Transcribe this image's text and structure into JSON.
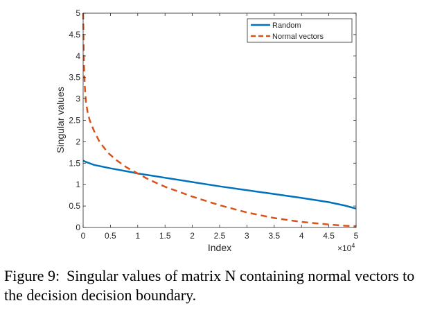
{
  "caption": {
    "prefix": "Figure 9:",
    "text": "Singular values of matrix N containing normal vectors to the decision decision boundary."
  },
  "chart_data": {
    "type": "line",
    "title": "",
    "xlabel": "Index",
    "ylabel": "Singular values",
    "x_multiplier_label": "×10",
    "x_multiplier_exponent": "4",
    "xlim": [
      0,
      5
    ],
    "ylim": [
      0,
      5
    ],
    "xticks": [
      "0",
      "0.5",
      "1",
      "1.5",
      "2",
      "2.5",
      "3",
      "3.5",
      "4",
      "4.5",
      "5"
    ],
    "yticks": [
      "0",
      "0.5",
      "1",
      "1.5",
      "2",
      "2.5",
      "3",
      "3.5",
      "4",
      "4.5",
      "5"
    ],
    "grid": false,
    "legend_position": "top-right",
    "series": [
      {
        "name": "Random",
        "color": "#0072BD",
        "style": "solid",
        "x": [
          0,
          0.05,
          0.2,
          0.5,
          0.8,
          1.0,
          1.5,
          2.0,
          2.5,
          3.0,
          3.5,
          4.0,
          4.5,
          4.8,
          5.0
        ],
        "y": [
          1.56,
          1.53,
          1.46,
          1.38,
          1.31,
          1.26,
          1.16,
          1.06,
          0.96,
          0.87,
          0.78,
          0.69,
          0.59,
          0.51,
          0.44
        ]
      },
      {
        "name": "Normal vectors",
        "color": "#D95319",
        "style": "dashed",
        "x": [
          0,
          0.005,
          0.01,
          0.02,
          0.03,
          0.05,
          0.08,
          0.12,
          0.2,
          0.3,
          0.45,
          0.6,
          0.8,
          1.0,
          1.2,
          1.5,
          2.0,
          2.5,
          3.0,
          3.5,
          4.0,
          4.5,
          4.8,
          5.0
        ],
        "y": [
          5.0,
          4.6,
          4.1,
          3.6,
          3.3,
          2.95,
          2.7,
          2.5,
          2.25,
          2.0,
          1.75,
          1.58,
          1.4,
          1.26,
          1.12,
          0.95,
          0.72,
          0.52,
          0.35,
          0.22,
          0.13,
          0.07,
          0.04,
          0.03
        ]
      }
    ]
  }
}
